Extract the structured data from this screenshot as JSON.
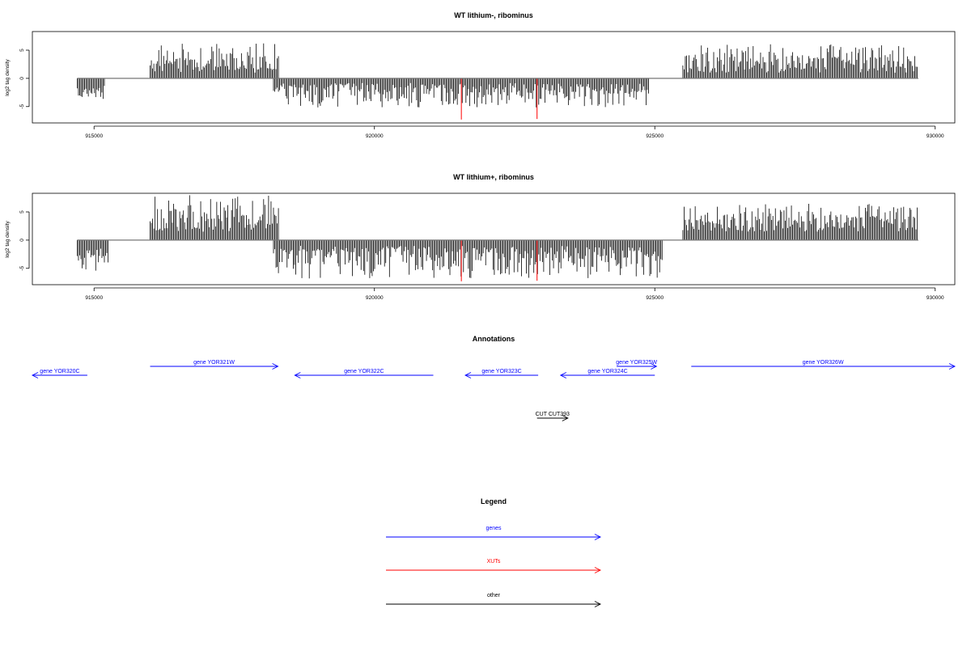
{
  "colors": {
    "genes": "#0000ff",
    "xuts": "#ff0000",
    "other": "#000000",
    "signal": "#000000",
    "axis": "#000000"
  },
  "chart_data": [
    {
      "type": "bar",
      "title": "WT lithium-, ribominus",
      "xlabel": "",
      "ylabel": "log2 tag density",
      "xlim": [
        913900,
        930350
      ],
      "ylim": [
        -7.9,
        8.3
      ],
      "xticks": [
        915000,
        920000,
        925000,
        930000
      ],
      "xtick_labels": [
        "915000",
        "920000",
        "925000",
        "930000"
      ],
      "yticks": [
        -5,
        0,
        5
      ],
      "ytick_labels": [
        "-5",
        "0",
        "5"
      ],
      "segments": [
        {
          "from": 914700,
          "to": 915200,
          "strand": "minus",
          "min": 1.2,
          "max": 4.6
        },
        {
          "from": 916000,
          "to": 918300,
          "strand": "plus",
          "min": 1.0,
          "max": 6.2
        },
        {
          "from": 918200,
          "to": 924900,
          "strand": "minus",
          "min": 0.8,
          "max": 5.2
        },
        {
          "from": 925500,
          "to": 929700,
          "strand": "plus",
          "min": 1.0,
          "max": 6.1
        }
      ],
      "highlights": [
        {
          "x": 921550,
          "y": -7.3,
          "color": "#ff0000"
        },
        {
          "x": 922900,
          "y": -7.2,
          "color": "#ff0000"
        }
      ]
    },
    {
      "type": "bar",
      "title": "WT lithium+, ribominus",
      "xlabel": "",
      "ylabel": "log2 tag density",
      "xlim": [
        913900,
        930350
      ],
      "ylim": [
        -7.9,
        8.3
      ],
      "xticks": [
        915000,
        920000,
        925000,
        930000
      ],
      "xtick_labels": [
        "915000",
        "920000",
        "925000",
        "930000"
      ],
      "yticks": [
        -5,
        0,
        5
      ],
      "ytick_labels": [
        "-5",
        "0",
        "5"
      ],
      "segments": [
        {
          "from": 914700,
          "to": 915250,
          "strand": "minus",
          "min": 1.5,
          "max": 6.0
        },
        {
          "from": 916000,
          "to": 918300,
          "strand": "plus",
          "min": 1.5,
          "max": 8.0
        },
        {
          "from": 918200,
          "to": 925150,
          "strand": "minus",
          "min": 1.0,
          "max": 6.8
        },
        {
          "from": 925500,
          "to": 929700,
          "strand": "plus",
          "min": 1.5,
          "max": 6.5
        }
      ],
      "highlights": [
        {
          "x": 921550,
          "y": -7.3,
          "color": "#ff0000"
        },
        {
          "x": 922900,
          "y": -7.2,
          "color": "#ff0000"
        }
      ]
    }
  ],
  "annotations": {
    "title": "Annotations",
    "xlim": [
      913900,
      930350
    ],
    "features": [
      {
        "label": "gene YOR320C",
        "from": 913900,
        "to": 914880,
        "strand": "-",
        "type": "gene",
        "row": 1
      },
      {
        "label": "gene YOR321W",
        "from": 916000,
        "to": 918280,
        "strand": "+",
        "type": "gene",
        "row": 0
      },
      {
        "label": "gene YOR322C",
        "from": 918580,
        "to": 921050,
        "strand": "-",
        "type": "gene",
        "row": 1
      },
      {
        "label": "gene YOR323C",
        "from": 921620,
        "to": 922920,
        "strand": "-",
        "type": "gene",
        "row": 1
      },
      {
        "label": "gene YOR324C",
        "from": 923320,
        "to": 925000,
        "strand": "-",
        "type": "gene",
        "row": 1
      },
      {
        "label": "gene YOR325W",
        "from": 924320,
        "to": 925030,
        "strand": "+",
        "type": "gene",
        "row": 0
      },
      {
        "label": "gene YOR326W",
        "from": 925650,
        "to": 930350,
        "strand": "+",
        "type": "gene",
        "row": 0
      },
      {
        "label": "CUT CUT393",
        "from": 922900,
        "to": 923450,
        "strand": "+",
        "type": "other",
        "row": 2
      }
    ]
  },
  "legend": {
    "title": "Legend",
    "items": [
      {
        "label": "genes",
        "color": "#0000ff"
      },
      {
        "label": "XUTs",
        "color": "#ff0000"
      },
      {
        "label": "other",
        "color": "#000000"
      }
    ]
  }
}
